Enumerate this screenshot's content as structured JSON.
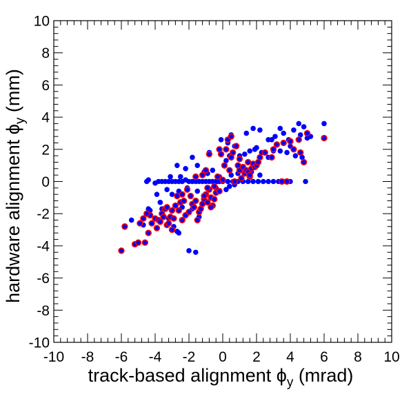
{
  "chart_data": {
    "type": "scatter",
    "xlabel": {
      "main": "track-based alignment ϕ",
      "sub": "y",
      "unit": " (mrad)"
    },
    "ylabel": {
      "main": "hardware alignment ϕ",
      "sub": "y",
      "unit": " (mm)"
    },
    "xlim": [
      -10,
      10
    ],
    "ylim": [
      -10,
      10
    ],
    "xticks": [
      -10,
      -8,
      -6,
      -4,
      -2,
      0,
      2,
      4,
      6,
      8,
      10
    ],
    "yticks": [
      -10,
      -8,
      -6,
      -4,
      -2,
      0,
      2,
      4,
      6,
      8,
      10
    ],
    "grid": false,
    "legend": "none",
    "series": [
      {
        "style": "blue",
        "color": "#0000ff",
        "points": [
          [
            -4.5,
            0
          ],
          [
            -4.4,
            0.1
          ],
          [
            -4.0,
            -0.1
          ],
          [
            -3.8,
            0
          ],
          [
            -3.6,
            0
          ],
          [
            -3.4,
            0
          ],
          [
            -3.2,
            0
          ],
          [
            -3.0,
            0
          ],
          [
            -2.8,
            0
          ],
          [
            -2.6,
            0
          ],
          [
            -2.4,
            0
          ],
          [
            -2.2,
            0.1
          ],
          [
            -2.0,
            0
          ],
          [
            -1.8,
            0
          ],
          [
            -1.6,
            0
          ],
          [
            -1.4,
            0
          ],
          [
            -1.2,
            0
          ],
          [
            -1.0,
            0
          ],
          [
            -0.8,
            0
          ],
          [
            -0.6,
            0
          ],
          [
            -0.4,
            0
          ],
          [
            -0.2,
            0
          ],
          [
            0.0,
            0
          ],
          [
            0.3,
            0
          ],
          [
            0.6,
            0
          ],
          [
            0.9,
            0
          ],
          [
            1.2,
            0
          ],
          [
            1.5,
            0
          ],
          [
            1.8,
            0
          ],
          [
            2.1,
            0
          ],
          [
            2.4,
            0
          ],
          [
            2.7,
            0
          ],
          [
            3.0,
            0
          ],
          [
            3.3,
            0
          ],
          [
            3.6,
            0
          ],
          [
            4.0,
            0
          ],
          [
            4.9,
            0
          ],
          [
            -3.9,
            -0.8
          ],
          [
            -4.4,
            -1.7
          ],
          [
            -3.6,
            -1.7
          ],
          [
            -3.0,
            -0.8
          ],
          [
            -2.6,
            -0.6
          ],
          [
            -2.2,
            0.8
          ],
          [
            -2.7,
            1.0
          ],
          [
            -1.8,
            1.5
          ],
          [
            -1.5,
            1.0
          ],
          [
            -1.1,
            0.6
          ],
          [
            -0.6,
            0.7
          ],
          [
            -0.9,
            0.5
          ],
          [
            -0.2,
            0.3
          ],
          [
            -0.4,
            -0.4
          ],
          [
            0.2,
            -0.5
          ],
          [
            0.4,
            -0.3
          ],
          [
            0.7,
            -0.2
          ],
          [
            1.0,
            1.6
          ],
          [
            1.3,
            1.7
          ],
          [
            1.6,
            1.9
          ],
          [
            2.0,
            2.1
          ],
          [
            0.7,
            2.2
          ],
          [
            0.3,
            2.4
          ],
          [
            -0.1,
            2.6
          ],
          [
            0.5,
            2.9
          ],
          [
            1.4,
            3.0
          ],
          [
            1.8,
            3.3
          ],
          [
            2.2,
            3.2
          ],
          [
            2.7,
            2.6
          ],
          [
            3.1,
            2.8
          ],
          [
            3.4,
            3.3
          ],
          [
            3.6,
            3.0
          ],
          [
            3.9,
            2.6
          ],
          [
            4.2,
            3.2
          ],
          [
            4.5,
            3.6
          ],
          [
            4.8,
            3.4
          ],
          [
            4.6,
            2.9
          ],
          [
            4.2,
            2.0
          ],
          [
            3.8,
            1.8
          ],
          [
            3.4,
            1.9
          ],
          [
            3.0,
            1.9
          ],
          [
            2.7,
            1.5
          ],
          [
            2.9,
            2.6
          ],
          [
            4.3,
            1.6
          ],
          [
            4.7,
            1.5
          ],
          [
            5.2,
            2.8
          ],
          [
            6.0,
            3.6
          ],
          [
            5.0,
            2.7
          ],
          [
            4.0,
            2.2
          ],
          [
            2.3,
            1.8
          ],
          [
            1.9,
            2.0
          ],
          [
            0.4,
            1.6
          ],
          [
            0.2,
            1.3
          ],
          [
            -0.8,
            1.8
          ],
          [
            -1.1,
            -1.0
          ],
          [
            -1.4,
            -2.2
          ],
          [
            -1.8,
            -1.7
          ],
          [
            -2.4,
            -1.6
          ],
          [
            -2.7,
            -3.1
          ],
          [
            -2.9,
            -2.8
          ],
          [
            -3.2,
            -2.3
          ],
          [
            -3.7,
            -1.3
          ],
          [
            -4.3,
            -1.8
          ],
          [
            -4.7,
            -2.7
          ],
          [
            -5.4,
            -2.4
          ],
          [
            -1.6,
            -4.4
          ],
          [
            -2.0,
            -4.3
          ],
          [
            -2.6,
            -3.2
          ],
          [
            0.9,
            0.5
          ],
          [
            0.5,
            0.4
          ],
          [
            1.1,
            0.8
          ],
          [
            1.7,
            0.6
          ],
          [
            2.2,
            0.4
          ],
          [
            -0.3,
            0.0
          ],
          [
            -1.5,
            -0.6
          ],
          [
            -2.1,
            -0.4
          ],
          [
            -3.3,
            -0.5
          ],
          [
            -3.1,
            0.3
          ],
          [
            -2.5,
            0.3
          ]
        ]
      },
      {
        "style": "red-ring",
        "color": "#0000ff",
        "ring": "#ff0000",
        "points": [
          [
            -6.0,
            -4.3
          ],
          [
            -5.8,
            -2.8
          ],
          [
            -5.2,
            -3.9
          ],
          [
            -5.0,
            -3.8
          ],
          [
            -4.9,
            -2.6
          ],
          [
            -4.6,
            -3.8
          ],
          [
            -4.4,
            -3.2
          ],
          [
            -4.3,
            -2.1
          ],
          [
            -4.2,
            -2.6
          ],
          [
            -4.0,
            -2.3
          ],
          [
            -3.9,
            -2.9
          ],
          [
            -3.8,
            -2.4
          ],
          [
            -3.7,
            -2.5
          ],
          [
            -3.6,
            -2.0
          ],
          [
            -3.5,
            -2.2
          ],
          [
            -3.4,
            -1.7
          ],
          [
            -3.3,
            -2.7
          ],
          [
            -3.2,
            -2.6
          ],
          [
            -3.1,
            -2.2
          ],
          [
            -3.0,
            -1.8
          ],
          [
            -2.9,
            -2.3
          ],
          [
            -2.8,
            -1.5
          ],
          [
            -2.6,
            -1.8
          ],
          [
            -2.5,
            -1.3
          ],
          [
            -2.4,
            -0.8
          ],
          [
            -2.2,
            -2.1
          ],
          [
            -2.0,
            -1.9
          ],
          [
            -1.8,
            -1.4
          ],
          [
            -1.6,
            -1.2
          ],
          [
            -1.4,
            -1.9
          ],
          [
            -1.3,
            -1.7
          ],
          [
            -1.2,
            -1.4
          ],
          [
            -1.1,
            -1.1
          ],
          [
            -1.0,
            -0.8
          ],
          [
            -0.9,
            -1.3
          ],
          [
            -0.8,
            -0.5
          ],
          [
            -0.7,
            -1.0
          ],
          [
            -0.6,
            -1.5
          ],
          [
            -0.5,
            -0.3
          ],
          [
            -0.4,
            -0.7
          ],
          [
            -0.3,
            0.3
          ],
          [
            -0.2,
            -0.6
          ],
          [
            -1.5,
            -2.4
          ],
          [
            -1.7,
            -1.6
          ],
          [
            -1.9,
            -0.9
          ],
          [
            -2.1,
            -0.5
          ],
          [
            -1.6,
            0.3
          ],
          [
            -1.2,
            0.4
          ],
          [
            -0.8,
            1.7
          ],
          [
            -1.0,
            0.7
          ],
          [
            0.0,
            0.1
          ],
          [
            0.1,
            1.0
          ],
          [
            0.2,
            2.0
          ],
          [
            0.3,
            2.6
          ],
          [
            0.4,
            0.7
          ],
          [
            0.5,
            2.8
          ],
          [
            0.6,
            1.8
          ],
          [
            0.7,
            0.0
          ],
          [
            0.8,
            2.2
          ],
          [
            0.9,
            1.0
          ],
          [
            1.0,
            0.7
          ],
          [
            1.1,
            0.2
          ],
          [
            1.2,
            0.9
          ],
          [
            1.3,
            0.5
          ],
          [
            1.4,
            0.7
          ],
          [
            1.5,
            0.6
          ],
          [
            1.6,
            0.3
          ],
          [
            1.7,
            0.8
          ],
          [
            1.8,
            1.1
          ],
          [
            1.9,
            0.9
          ],
          [
            2.0,
            1.0
          ],
          [
            2.1,
            1.2
          ],
          [
            2.2,
            1.5
          ],
          [
            1.5,
            1.2
          ],
          [
            1.0,
            1.4
          ],
          [
            0.5,
            1.5
          ],
          [
            -0.2,
            2.0
          ],
          [
            -0.1,
            1.7
          ],
          [
            2.5,
            1.8
          ],
          [
            3.0,
            2.0
          ],
          [
            3.5,
            0.0
          ],
          [
            3.8,
            0.0
          ],
          [
            4.2,
            2.0
          ],
          [
            4.6,
            1.8
          ],
          [
            4.8,
            1.2
          ],
          [
            5.0,
            3.0
          ],
          [
            6.0,
            2.7
          ],
          [
            4.5,
            2.6
          ],
          [
            4.0,
            2.5
          ],
          [
            3.6,
            2.4
          ],
          [
            3.2,
            2.3
          ],
          [
            2.9,
            1.5
          ],
          [
            1.6,
            0.4
          ],
          [
            -0.5,
            -1.1
          ],
          [
            -0.7,
            -1.6
          ],
          [
            -0.9,
            -0.4
          ],
          [
            -1.1,
            -0.9
          ],
          [
            -2.3,
            -1.2
          ],
          [
            -2.7,
            -0.9
          ],
          [
            -3.3,
            -1.6
          ],
          [
            -4.5,
            -2.0
          ],
          [
            -4.7,
            -2.3
          ],
          [
            -3.0,
            -3.0
          ],
          [
            -2.4,
            -2.4
          ]
        ]
      }
    ]
  }
}
